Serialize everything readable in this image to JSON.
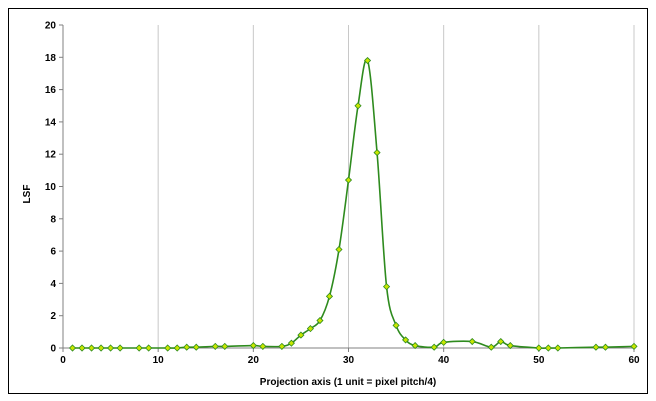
{
  "chart_data": {
    "type": "line",
    "xlabel": "Projection axis (1 unit = pixel pitch/4)",
    "ylabel": "LSF",
    "xlim": [
      0,
      60
    ],
    "ylim": [
      0,
      20
    ],
    "x_ticks": [
      0,
      10,
      20,
      30,
      40,
      50,
      60
    ],
    "y_ticks": [
      0,
      2,
      4,
      6,
      8,
      10,
      12,
      14,
      16,
      18,
      20
    ],
    "grid": "vertical",
    "legend": "none",
    "series": [
      {
        "color": "#2e8b1e",
        "marker_color": "#c8e600",
        "x": [
          1,
          2,
          3,
          4,
          5,
          6,
          8,
          9,
          11,
          12,
          13,
          14,
          16,
          17,
          20,
          21,
          23,
          24,
          25,
          26,
          27,
          28,
          29,
          30,
          31,
          32,
          33,
          34,
          35,
          36,
          37,
          39,
          40,
          43,
          45,
          46,
          47,
          50,
          51,
          52,
          56,
          57,
          60
        ],
        "y": [
          0,
          0,
          0,
          0,
          0,
          0,
          0,
          0,
          0,
          0,
          0.05,
          0.05,
          0.1,
          0.1,
          0.15,
          0.1,
          0.1,
          0.3,
          0.8,
          1.2,
          1.7,
          3.2,
          6.1,
          10.4,
          15.0,
          17.8,
          12.1,
          3.8,
          1.4,
          0.5,
          0.15,
          0.05,
          0.35,
          0.4,
          0.05,
          0.4,
          0.15,
          0,
          0,
          0,
          0.05,
          0.05,
          0.1
        ]
      }
    ]
  }
}
